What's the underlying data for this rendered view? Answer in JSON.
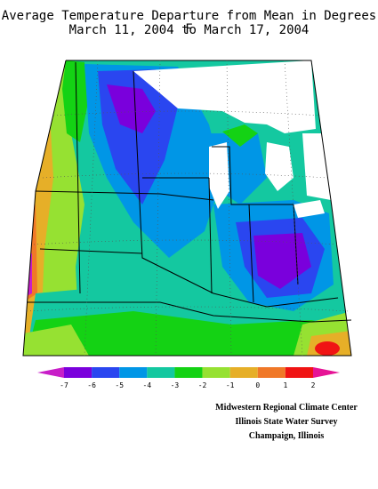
{
  "title_line1": "Average Temperature Departure from Mean in Degrees F",
  "title_line2": "March 11, 2004 to March 17, 2004",
  "legend": {
    "ticks": [
      "-7",
      "-6",
      "-5",
      "-4",
      "-3",
      "-2",
      "-1",
      "0",
      "1",
      "2"
    ],
    "colors": [
      "#7a00dc",
      "#2a46f0",
      "#0096e6",
      "#14c8a0",
      "#14d214",
      "#96e132",
      "#e6af28",
      "#f07828",
      "#f01414",
      "#e61496"
    ],
    "low_arrow_color": "#c81ec8",
    "high_arrow_color": "#e61496"
  },
  "credits": {
    "line1": "Midwestern Regional Climate Center",
    "line2": "Illinois State Water Survey",
    "line3": "Champaign, Illinois"
  },
  "map": {
    "region": "Midwest United States",
    "colors": {
      "very_cold": "#7a00dc",
      "cold": "#2a46f0",
      "cool": "#0096e6",
      "mild_cool": "#14c8a0",
      "green": "#14d214",
      "lime": "#96e132",
      "orange": "#e6af28",
      "dark_orange": "#f07828",
      "red": "#f01414",
      "magenta": "#c81ec8",
      "lake": "#ffffff",
      "outline": "#000000"
    }
  }
}
